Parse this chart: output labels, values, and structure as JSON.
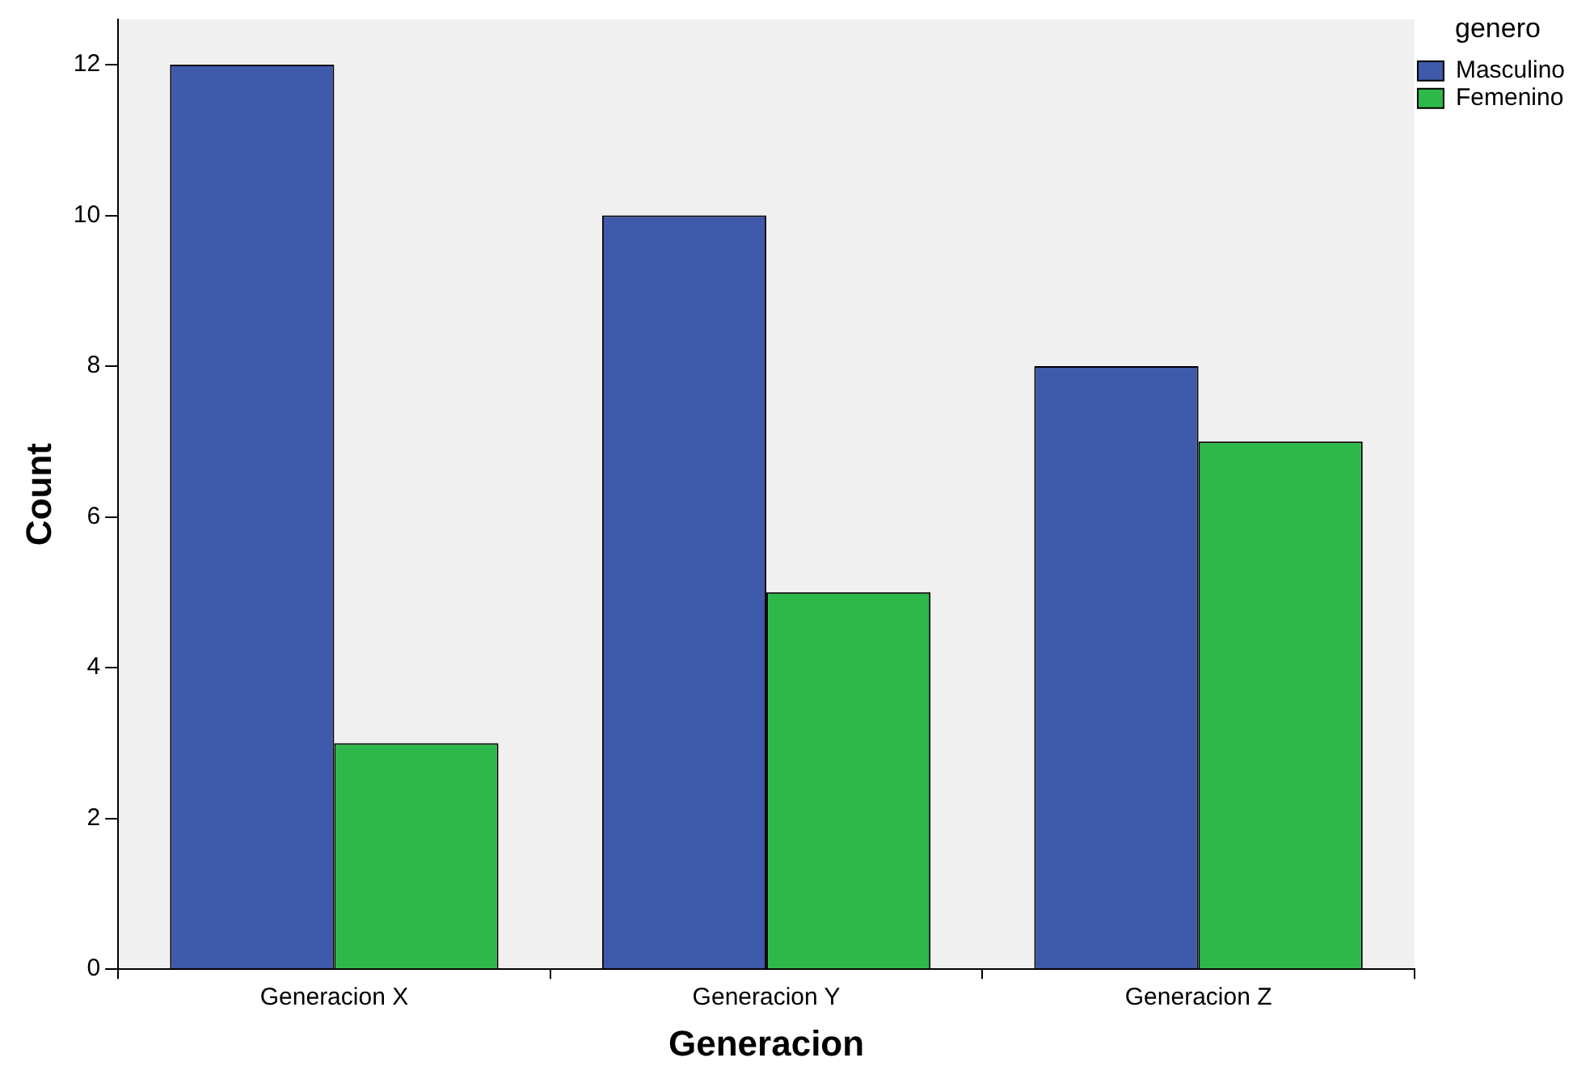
{
  "chart_data": {
    "type": "bar",
    "xlabel": "Generacion",
    "ylabel": "Count",
    "legend_title": "genero",
    "categories": [
      "Generacion X",
      "Generacion Y",
      "Generacion Z"
    ],
    "series": [
      {
        "name": "Masculino",
        "color": "#3f59ab",
        "values": [
          12,
          10,
          8
        ]
      },
      {
        "name": "Femenino",
        "color": "#2fb84a",
        "values": [
          3,
          5,
          7
        ]
      }
    ],
    "ylim": [
      0,
      12.6
    ],
    "yticks": [
      0,
      2,
      4,
      6,
      8,
      10,
      12
    ],
    "grid": false,
    "legend": "top right"
  }
}
